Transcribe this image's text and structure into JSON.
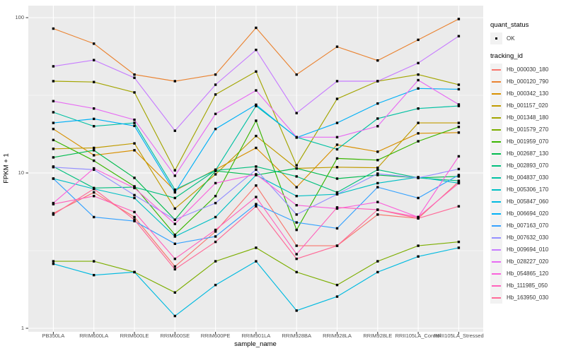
{
  "figure": {
    "background": "#FFFFFF",
    "panel_background": "#EBEBEB",
    "gridline_color": "#FFFFFF",
    "tick_color": "#333333",
    "tick_label_color": "#4D4D4D",
    "axis_title_color": "#000000",
    "point_color": "#000000",
    "legend_key_background": "#F2F2F2"
  },
  "axes": {
    "y_title": "FPKM + 1",
    "x_title": "sample_name"
  },
  "legend": {
    "quant_status_title": "quant_status",
    "quant_status_items": [
      {
        "label": "OK",
        "symbol": "small-black-point"
      }
    ],
    "tracking_id_title": "tracking_id"
  },
  "chart_data": {
    "type": "line",
    "title": "",
    "xlabel": "sample_name",
    "ylabel": "FPKM + 1",
    "y_scale": "log10",
    "ylim": [
      1,
      110
    ],
    "y_tick_values": [
      1,
      10,
      100
    ],
    "y_tick_labels": [
      "1",
      "10",
      "100"
    ],
    "y_minor_values": [
      3.1623,
      31.6228
    ],
    "grid": true,
    "legend_position": "right",
    "point_marker": {
      "shape": "square",
      "color": "#000000",
      "size": 3.4
    },
    "quant_status": "OK",
    "x_categories": [
      "PB350LA",
      "RRIM600LA",
      "RRIM600LE",
      "RRIM600SE",
      "RRIM600PE",
      "RRIM901LA",
      "RRIM928BA",
      "RRIM928LA",
      "RRIM928LE",
      "RRII105LA_Control",
      "RRII105LA_Stressed"
    ],
    "series": [
      {
        "name": "Hb_000030_180",
        "color": "#F8766D",
        "values": [
          5.5,
          7.5,
          5.2,
          2.5,
          4.2,
          8.3,
          3.4,
          3.4,
          5.4,
          5.1,
          8.8
        ]
      },
      {
        "name": "Hb_000120_790",
        "color": "#EA8331",
        "values": [
          85,
          68,
          43,
          39,
          43,
          86,
          43,
          65,
          53,
          72,
          98
        ]
      },
      {
        "name": "Hb_000342_130",
        "color": "#D89000",
        "values": [
          19.2,
          13,
          14,
          7.7,
          10.5,
          14.5,
          8.1,
          15.2,
          13.7,
          18,
          18.2
        ]
      },
      {
        "name": "Hb_001157_020",
        "color": "#C09B00",
        "values": [
          14.3,
          14.5,
          15.5,
          5.9,
          9.8,
          17.3,
          10.7,
          10.9,
          10.8,
          21,
          21
        ]
      },
      {
        "name": "Hb_001348_180",
        "color": "#A3A500",
        "values": [
          39,
          38.5,
          33,
          10.4,
          32,
          45,
          11.2,
          30,
          39,
          43,
          37
        ]
      },
      {
        "name": "Hb_001579_270",
        "color": "#7CAE00",
        "values": [
          2.7,
          2.7,
          2.3,
          1.7,
          2.7,
          3.3,
          2.3,
          1.9,
          2.7,
          3.4,
          3.6
        ]
      },
      {
        "name": "Hb_001959_070",
        "color": "#39B600",
        "values": [
          16.3,
          12,
          8.2,
          4,
          7.1,
          21.7,
          4.3,
          12.4,
          12.1,
          16,
          19.8
        ]
      },
      {
        "name": "Hb_002687_130",
        "color": "#00BB4E",
        "values": [
          12.6,
          14,
          9.3,
          5,
          10.3,
          9.7,
          10.7,
          9.2,
          9.7,
          9.3,
          9.5
        ]
      },
      {
        "name": "Hb_002893_070",
        "color": "#00BF7D",
        "values": [
          11,
          8,
          8.1,
          6.9,
          10.4,
          11,
          9.5,
          7.5,
          10.5,
          9.3,
          8.9
        ]
      },
      {
        "name": "Hb_004837_030",
        "color": "#00C1A3",
        "values": [
          24.6,
          20,
          21,
          7.8,
          10.4,
          27,
          17,
          14.2,
          22.4,
          26,
          27
        ]
      },
      {
        "name": "Hb_005306_170",
        "color": "#00BFC4",
        "values": [
          9.2,
          7.9,
          6.9,
          3.9,
          5.2,
          9.7,
          7.1,
          7.3,
          8.6,
          9.4,
          8.6
        ]
      },
      {
        "name": "Hb_005847_060",
        "color": "#00BAE0",
        "values": [
          2.6,
          2.2,
          2.3,
          1.2,
          1.9,
          2.7,
          1.3,
          1.6,
          2.3,
          2.9,
          3.3
        ]
      },
      {
        "name": "Hb_006694_020",
        "color": "#00B0F6",
        "values": [
          21,
          22.3,
          20.1,
          7.5,
          19.2,
          27.5,
          16.9,
          21,
          28,
          35,
          34.6
        ]
      },
      {
        "name": "Hb_007163_070",
        "color": "#35A2FF",
        "values": [
          9.2,
          5.2,
          4.9,
          3.5,
          3.9,
          6.3,
          4.8,
          4.4,
          8.1,
          6.9,
          9.7
        ]
      },
      {
        "name": "Hb_007632_030",
        "color": "#9590FF",
        "values": [
          10.9,
          10.5,
          7.2,
          5,
          6.4,
          10.5,
          5.4,
          7.3,
          9.9,
          9.3,
          10.6
        ]
      },
      {
        "name": "Hb_009694_010",
        "color": "#C77CFF",
        "values": [
          48.6,
          53.3,
          41,
          18.7,
          37,
          62,
          24.3,
          39,
          39,
          51,
          76
        ]
      },
      {
        "name": "Hb_028227_020",
        "color": "#E76BF3",
        "values": [
          29,
          26,
          22,
          9.6,
          24,
          34,
          17,
          17,
          20,
          39.6,
          27.6
        ]
      },
      {
        "name": "Hb_054865_120",
        "color": "#FA62DB",
        "values": [
          6.4,
          10.7,
          8,
          4.7,
          8.6,
          9.8,
          6.2,
          5.9,
          6.5,
          5.2,
          12.8
        ]
      },
      {
        "name": "Hb_111985_050",
        "color": "#FF62BC",
        "values": [
          6.3,
          7.1,
          5.6,
          2.8,
          4.3,
          7,
          3,
          6,
          5.8,
          5.2,
          8.6
        ]
      },
      {
        "name": "Hb_163950_030",
        "color": "#FF6A98",
        "values": [
          5.4,
          7.9,
          5,
          2.4,
          3.6,
          6.1,
          2.8,
          3.4,
          5.8,
          5.1,
          6.1
        ]
      }
    ]
  }
}
